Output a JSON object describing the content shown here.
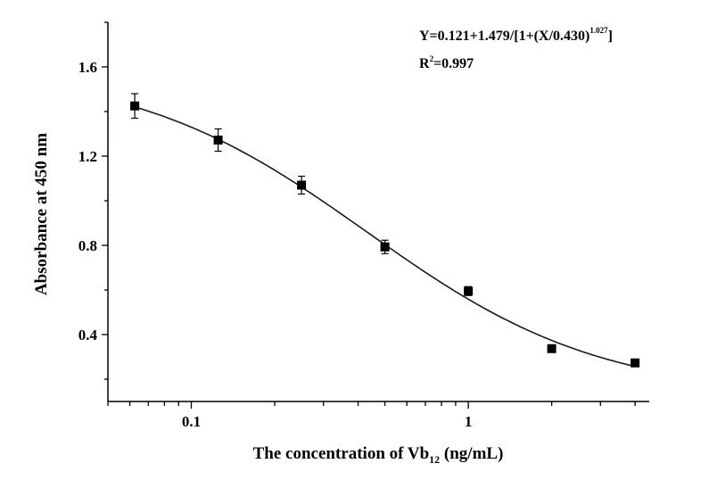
{
  "chart_data": {
    "type": "scatter",
    "title": "",
    "xlabel": {
      "main": "The concentration of Vb",
      "sub": "12",
      "unit": " (ng/mL)"
    },
    "ylabel": "Absorbance at 450 nm",
    "xscale": "log",
    "xlim": [
      0.05,
      4.5
    ],
    "ylim": [
      0.1,
      1.8
    ],
    "xticks": [
      {
        "value": 0.1,
        "label": "0.1"
      },
      {
        "value": 1,
        "label": "1"
      }
    ],
    "yticks": [
      {
        "value": 0.4,
        "label": "0.4"
      },
      {
        "value": 0.8,
        "label": "0.8"
      },
      {
        "value": 1.2,
        "label": "1.2"
      },
      {
        "value": 1.6,
        "label": "1.6"
      }
    ],
    "grid": false,
    "points": {
      "x": [
        0.0625,
        0.125,
        0.25,
        0.5,
        1,
        2,
        4
      ],
      "y": [
        1.425,
        1.272,
        1.07,
        0.793,
        0.595,
        0.337,
        0.273
      ],
      "error": [
        0.055,
        0.05,
        0.04,
        0.03,
        0.02,
        0.008,
        0.008
      ]
    },
    "fit": {
      "type": "four-parameter logistic",
      "bottom": 0.121,
      "span": 1.479,
      "ec50": 0.43,
      "slope": 1.027
    },
    "annotations": {
      "equation_main": "Y=0.121+1.479/[1+(X/0.430)",
      "equation_exp": "1.027",
      "equation_end": "]",
      "r2_prefix": "R",
      "r2_sup": "2",
      "r2_value": "=0.997"
    },
    "colors": {
      "marker": "#000000",
      "line": "#1a1a1a"
    }
  }
}
